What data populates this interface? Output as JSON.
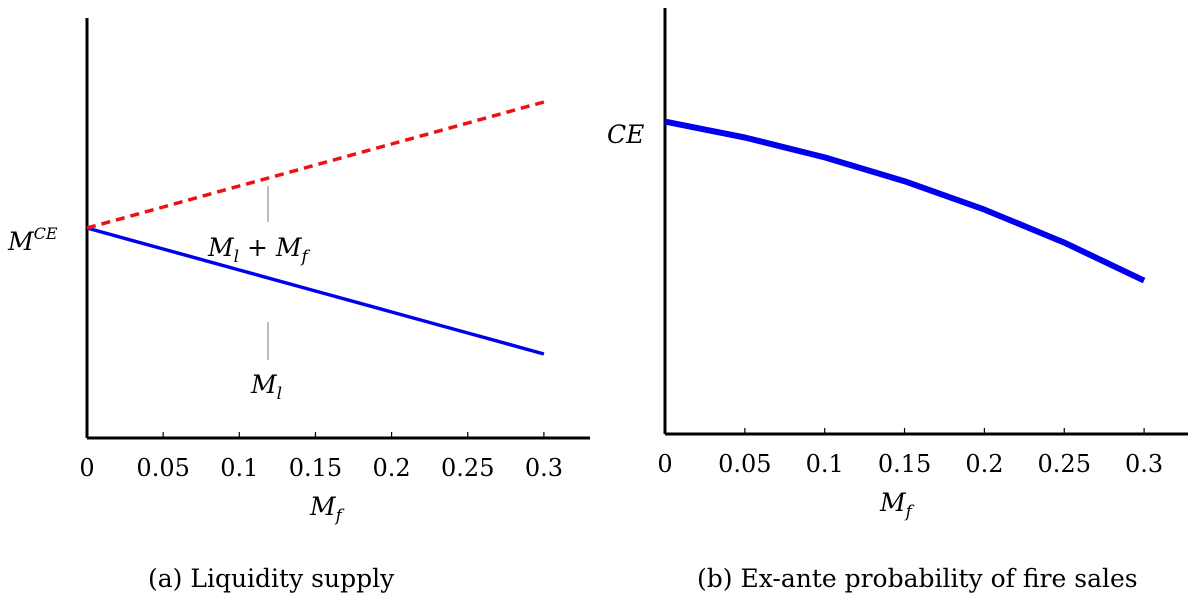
{
  "chart_data": [
    {
      "type": "line",
      "caption": "(a) Liquidity supply",
      "xlabel": {
        "main": "M",
        "sub": "f"
      },
      "ylabel": "",
      "xlim": [
        0,
        0.33
      ],
      "ylim": [
        0.25,
        1.25
      ],
      "xticks": [
        "0",
        "0.05",
        "0.1",
        "0.15",
        "0.2",
        "0.25",
        "0.3"
      ],
      "ytick_label": {
        "main": "M",
        "sup": "CE"
      },
      "ytick_value": 0.75,
      "grid": false,
      "series": [
        {
          "name": {
            "main": "M",
            "sub": "l"
          },
          "color": "#0000ee",
          "style": "solid",
          "x": [
            0,
            0.05,
            0.1,
            0.15,
            0.2,
            0.25,
            0.3
          ],
          "y": [
            0.75,
            0.7,
            0.65,
            0.6,
            0.55,
            0.5,
            0.45
          ]
        },
        {
          "name": {
            "main": "M",
            "sub": "l",
            "op": " + ",
            "main2": "M",
            "sub2": "f"
          },
          "color": "#ee1111",
          "style": "dashed",
          "x": [
            0,
            0.05,
            0.1,
            0.15,
            0.2,
            0.25,
            0.3
          ],
          "y": [
            0.75,
            0.8,
            0.85,
            0.9,
            0.95,
            1.0,
            1.05
          ]
        }
      ]
    },
    {
      "type": "line",
      "caption": "(b) Ex-ante probability of fire sales",
      "xlabel": {
        "main": "M",
        "sub": "f"
      },
      "ylabel": "",
      "xlim": [
        0,
        0.33
      ],
      "ylim": [
        0.2,
        0.95
      ],
      "xticks": [
        "0",
        "0.05",
        "0.1",
        "0.15",
        "0.2",
        "0.25",
        "0.3"
      ],
      "ytick_label": {
        "main": "CE"
      },
      "ytick_value": 0.75,
      "grid": false,
      "series": [
        {
          "name": "",
          "color": "#0000ee",
          "style": "solid",
          "x": [
            0,
            0.05,
            0.1,
            0.15,
            0.2,
            0.25,
            0.3
          ],
          "y": [
            0.75,
            0.722,
            0.687,
            0.645,
            0.595,
            0.537,
            0.47
          ]
        }
      ]
    }
  ]
}
